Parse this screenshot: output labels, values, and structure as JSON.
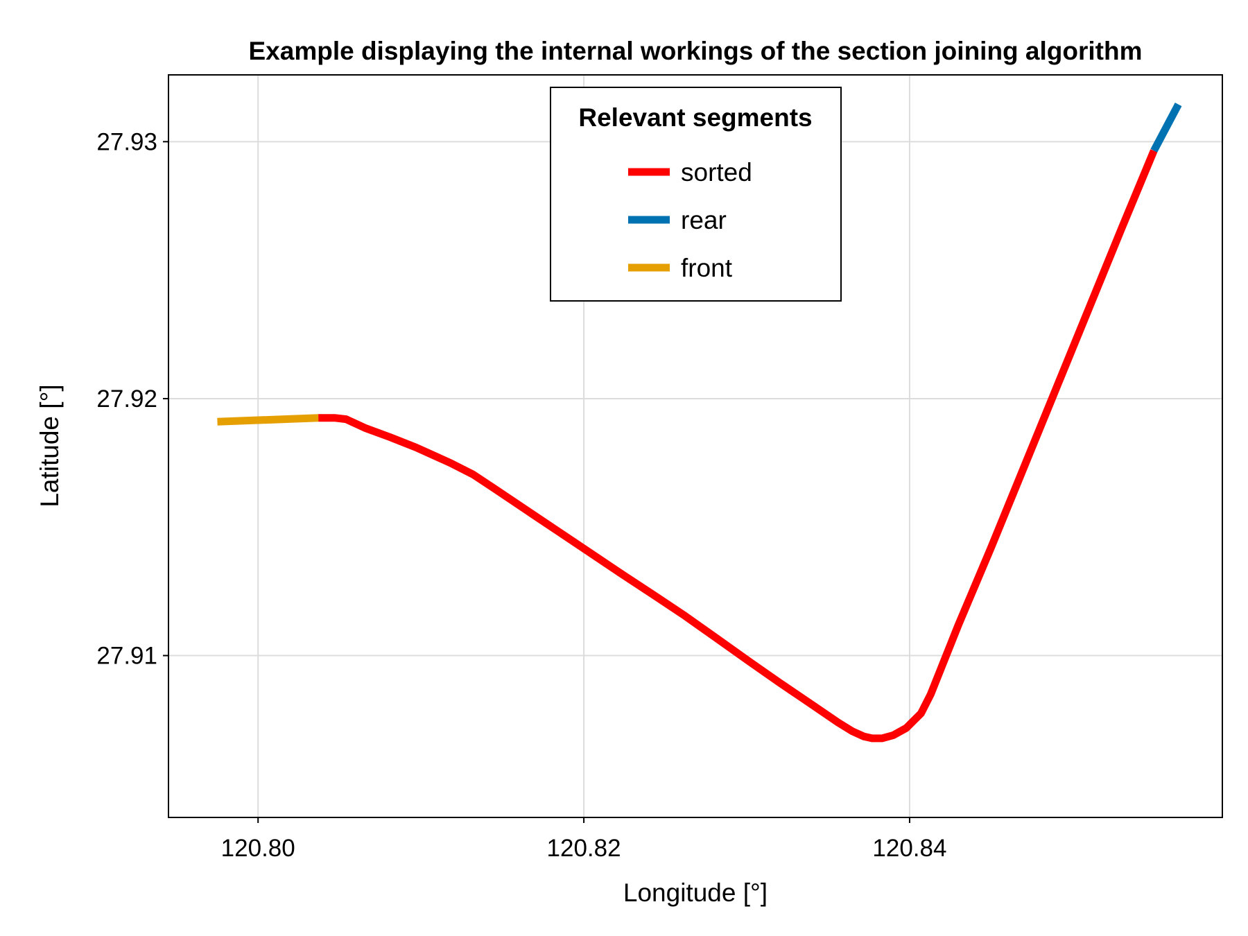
{
  "chart_data": {
    "type": "line",
    "title": "Example displaying the internal workings of the section joining algorithm",
    "xlabel": "Longitude [°]",
    "ylabel": "Latitude [°]",
    "xlim": [
      120.7945,
      120.8592
    ],
    "ylim": [
      27.9037,
      27.9326
    ],
    "xticks": [
      120.8,
      120.82,
      120.84
    ],
    "xtick_labels": [
      "120.80",
      "120.82",
      "120.84"
    ],
    "yticks": [
      27.91,
      27.92,
      27.93
    ],
    "ytick_labels": [
      "27.91",
      "27.92",
      "27.93"
    ],
    "grid": true,
    "legend": {
      "title": "Relevant segments",
      "position": "top-center"
    },
    "series": [
      {
        "name": "sorted",
        "color": "#ff0000",
        "points": [
          [
            120.8037,
            27.91925
          ],
          [
            120.8047,
            27.91925
          ],
          [
            120.8054,
            27.9192
          ],
          [
            120.8066,
            27.91885
          ],
          [
            120.8081,
            27.9185
          ],
          [
            120.8097,
            27.9181
          ],
          [
            120.8118,
            27.9175
          ],
          [
            120.8132,
            27.91705
          ],
          [
            120.8145,
            27.9165
          ],
          [
            120.8165,
            27.91565
          ],
          [
            120.8185,
            27.9148
          ],
          [
            120.8205,
            27.91395
          ],
          [
            120.8225,
            27.9131
          ],
          [
            120.8243,
            27.91235
          ],
          [
            120.8262,
            27.91155
          ],
          [
            120.8282,
            27.91065
          ],
          [
            120.8302,
            27.90975
          ],
          [
            120.832,
            27.90895
          ],
          [
            120.8341,
            27.90805
          ],
          [
            120.8356,
            27.9074
          ],
          [
            120.8365,
            27.90705
          ],
          [
            120.8372,
            27.90685
          ],
          [
            120.8377,
            27.90678
          ],
          [
            120.8383,
            27.90678
          ],
          [
            120.839,
            27.9069
          ],
          [
            120.8398,
            27.90718
          ],
          [
            120.8407,
            27.90775
          ],
          [
            120.8413,
            27.9085
          ],
          [
            120.843,
            27.9112
          ],
          [
            120.845,
            27.9142
          ],
          [
            120.847,
            27.9173
          ],
          [
            120.849,
            27.9204
          ],
          [
            120.851,
            27.9235
          ],
          [
            120.853,
            27.9266
          ],
          [
            120.855,
            27.92965
          ]
        ]
      },
      {
        "name": "rear",
        "color": "#0072b2",
        "points": [
          [
            120.855,
            27.92965
          ],
          [
            120.8565,
            27.93145
          ]
        ]
      },
      {
        "name": "front",
        "color": "#e69f00",
        "points": [
          [
            120.7975,
            27.9191
          ],
          [
            120.8037,
            27.91925
          ]
        ]
      }
    ]
  }
}
